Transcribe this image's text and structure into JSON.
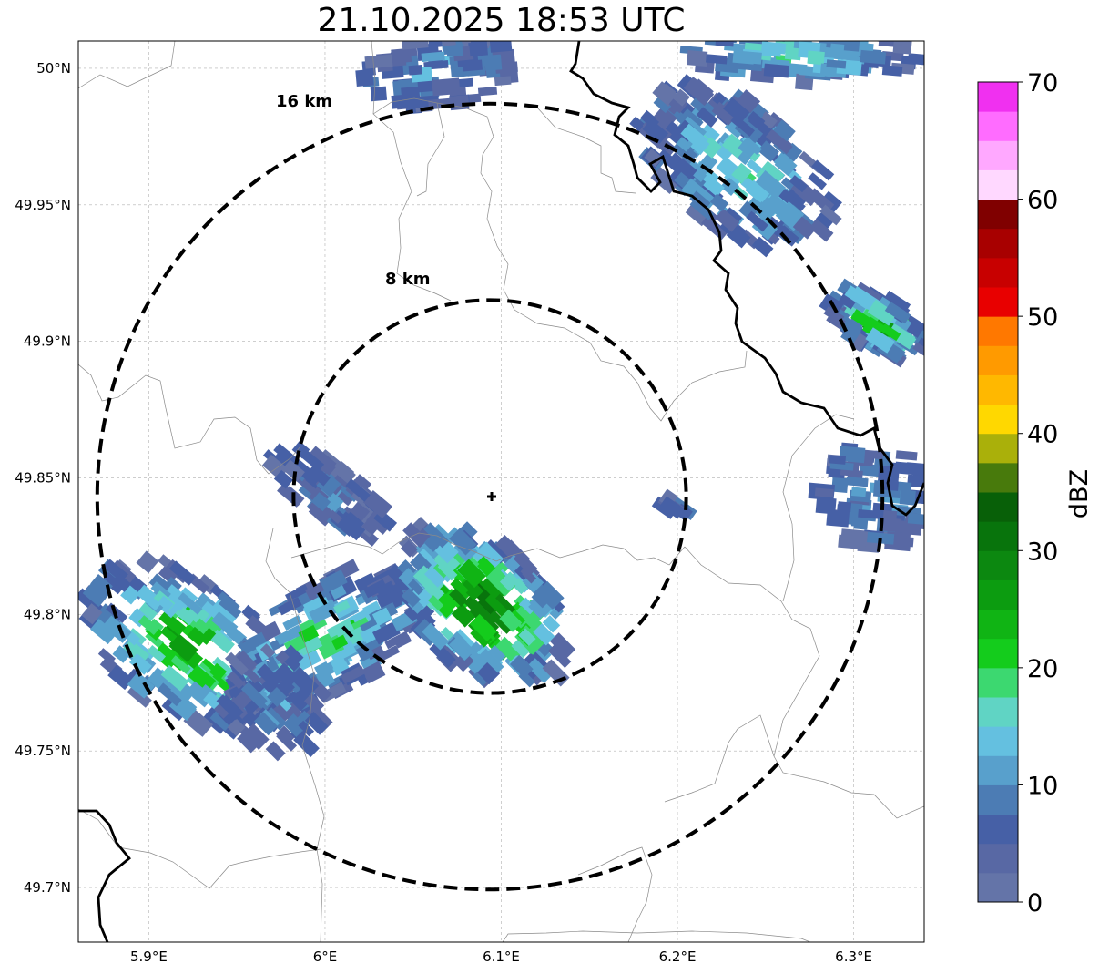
{
  "title": "21.10.2025 18:53 UTC",
  "map": {
    "lon_range": [
      5.86,
      6.34
    ],
    "lat_range": [
      49.68,
      50.01
    ],
    "x_ticks": [
      {
        "value": 5.9,
        "label": "5.9°E"
      },
      {
        "value": 6.0,
        "label": "6°E"
      },
      {
        "value": 6.1,
        "label": "6.1°E"
      },
      {
        "value": 6.2,
        "label": "6.2°E"
      },
      {
        "value": 6.3,
        "label": "6.3°E"
      }
    ],
    "y_ticks": [
      {
        "value": 50.0,
        "label": "50°N"
      },
      {
        "value": 49.95,
        "label": "49.95°N"
      },
      {
        "value": 49.9,
        "label": "49.9°N"
      },
      {
        "value": 49.85,
        "label": "49.85°N"
      },
      {
        "value": 49.8,
        "label": "49.8°N"
      },
      {
        "value": 49.75,
        "label": "49.75°N"
      },
      {
        "value": 49.7,
        "label": "49.7°N"
      }
    ],
    "radar_site": {
      "lon": 6.095,
      "lat": 49.843
    },
    "rings": [
      {
        "radius_km": 8,
        "label": "8 km"
      },
      {
        "radius_km": 16,
        "label": "16 km"
      }
    ]
  },
  "colorbar": {
    "label": "dBZ",
    "min": 0,
    "max": 70,
    "tick_labels": [
      "0",
      "10",
      "20",
      "30",
      "40",
      "50",
      "60",
      "70"
    ],
    "tick_values": [
      0,
      10,
      20,
      30,
      40,
      50,
      60,
      70
    ],
    "colors": [
      "#6474a8",
      "#5868a4",
      "#4660a6",
      "#4c7cb4",
      "#58a0cc",
      "#64c0e0",
      "#60d4c4",
      "#3cd870",
      "#14cc1c",
      "#10b414",
      "#0c9c10",
      "#0c8810",
      "#08740c",
      "#086008",
      "#487a0c",
      "#aab00a",
      "#ffd800",
      "#ffb800",
      "#ff9a00",
      "#ff7800",
      "#e80000",
      "#c80000",
      "#a80000",
      "#800000",
      "#ffd8ff",
      "#ffa8ff",
      "#ff6cff",
      "#f030f0"
    ]
  }
}
